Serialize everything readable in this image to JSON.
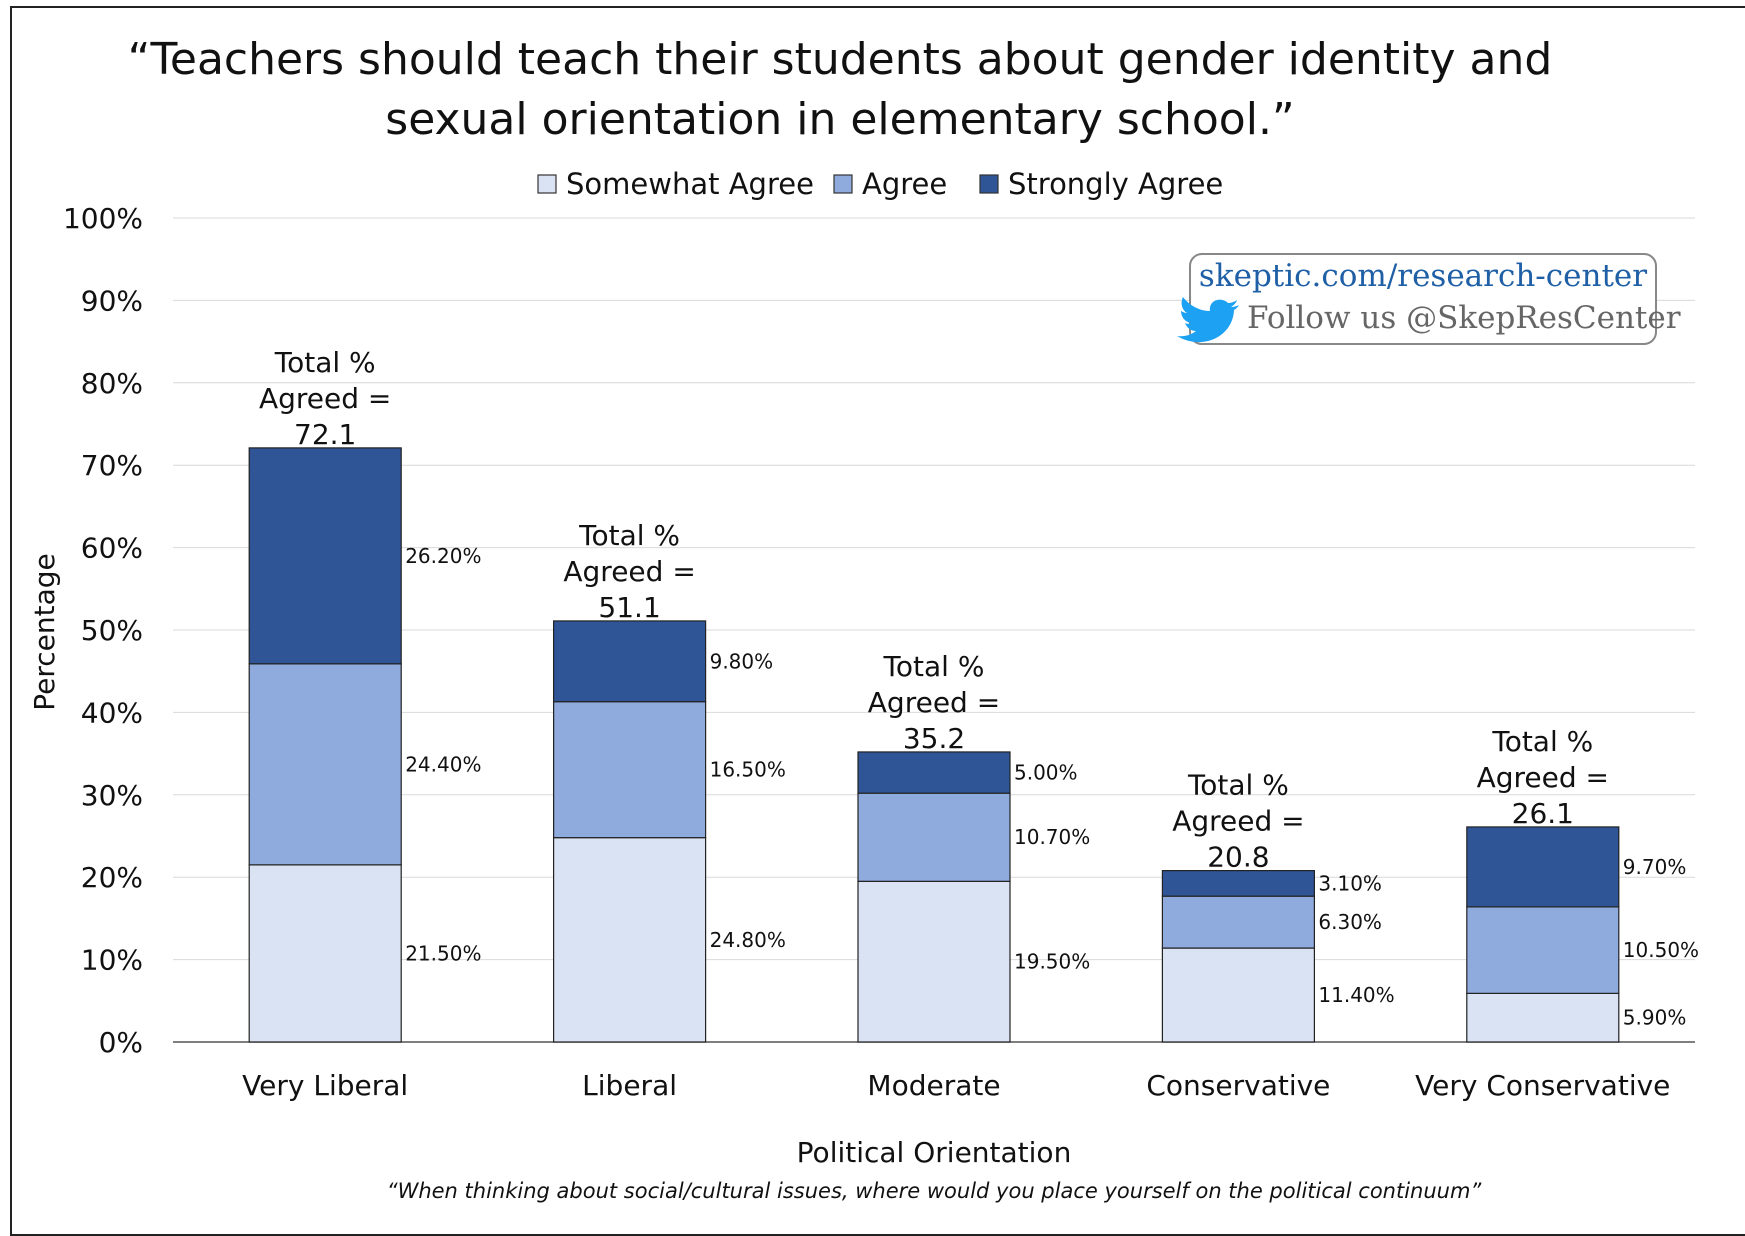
{
  "chart_data": {
    "type": "bar",
    "stacked": true,
    "title": "“Teachers should teach their students about gender identity and sexual orientation in elementary school.”",
    "title_lines": [
      "“Teachers should teach their students about gender identity and",
      "sexual orientation in elementary school.”"
    ],
    "xlabel": "Political Orientation",
    "x_note": "“When thinking about social/cultural issues, where would you place yourself on the political continuum”",
    "ylabel": "Percentage",
    "ylim": [
      0,
      100
    ],
    "yticks": [
      "0%",
      "10%",
      "20%",
      "30%",
      "40%",
      "50%",
      "60%",
      "70%",
      "80%",
      "90%",
      "100%"
    ],
    "grid": true,
    "legend_position": "top",
    "categories": [
      "Very Liberal",
      "Liberal",
      "Moderate",
      "Conservative",
      "Very Conservative"
    ],
    "series": [
      {
        "name": "Somewhat Agree",
        "color": "#dae3f3",
        "values": [
          21.5,
          24.8,
          19.5,
          11.4,
          5.9
        ],
        "labels": [
          "21.50%",
          "24.80%",
          "19.50%",
          "11.40%",
          "5.90%"
        ]
      },
      {
        "name": "Agree",
        "color": "#8faadc",
        "values": [
          24.4,
          16.5,
          10.7,
          6.3,
          10.5
        ],
        "labels": [
          "24.40%",
          "16.50%",
          "10.70%",
          "6.30%",
          "10.50%"
        ]
      },
      {
        "name": "Strongly Agree",
        "color": "#2f5597",
        "values": [
          26.2,
          9.8,
          5.0,
          3.1,
          9.7
        ],
        "labels": [
          "26.20%",
          "9.80%",
          "5.00%",
          "3.10%",
          "9.70%"
        ]
      }
    ],
    "totals": [
      {
        "line1": "Total %",
        "line2": "Agreed =",
        "value": "72.1"
      },
      {
        "line1": "Total %",
        "line2": "Agreed =",
        "value": "51.1"
      },
      {
        "line1": "Total %",
        "line2": "Agreed =",
        "value": "35.2"
      },
      {
        "line1": "Total %",
        "line2": "Agreed =",
        "value": "20.8"
      },
      {
        "line1": "Total %",
        "line2": "Agreed =",
        "value": "26.1"
      }
    ]
  },
  "branding": {
    "url": "skeptic.com/research-center",
    "follow": "Follow us @SkepResCenter",
    "icon": "twitter-bird-icon",
    "icon_color": "#1da1f2"
  }
}
